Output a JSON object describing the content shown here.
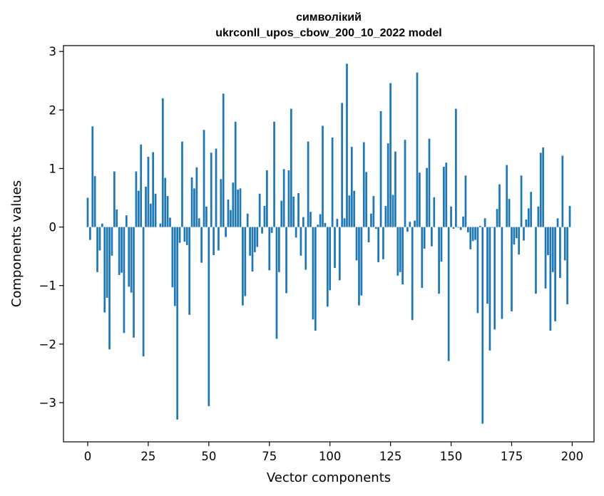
{
  "chart_data": {
    "type": "bar",
    "title": "символікий",
    "subtitle": "ukrconll_upos_cbow_200_10_2022 model",
    "xlabel": "Vector components",
    "ylabel": "Components values",
    "xlim": [
      -10,
      209
    ],
    "ylim": [
      -3.67,
      3.1
    ],
    "xticks": [
      0,
      25,
      50,
      75,
      100,
      125,
      150,
      175,
      200
    ],
    "yticks": [
      -3,
      -2,
      -1,
      0,
      1,
      2,
      3
    ],
    "bar_color": "#1f77b4",
    "grid": false,
    "legend": "none",
    "x": [
      0,
      1,
      2,
      3,
      4,
      5,
      6,
      7,
      8,
      9,
      10,
      11,
      12,
      13,
      14,
      15,
      16,
      17,
      18,
      19,
      20,
      21,
      22,
      23,
      24,
      25,
      26,
      27,
      28,
      29,
      30,
      31,
      32,
      33,
      34,
      35,
      36,
      37,
      38,
      39,
      40,
      41,
      42,
      43,
      44,
      45,
      46,
      47,
      48,
      49,
      50,
      51,
      52,
      53,
      54,
      55,
      56,
      57,
      58,
      59,
      60,
      61,
      62,
      63,
      64,
      65,
      66,
      67,
      68,
      69,
      70,
      71,
      72,
      73,
      74,
      75,
      76,
      77,
      78,
      79,
      80,
      81,
      82,
      83,
      84,
      85,
      86,
      87,
      88,
      89,
      90,
      91,
      92,
      93,
      94,
      95,
      96,
      97,
      98,
      99,
      100,
      101,
      102,
      103,
      104,
      105,
      106,
      107,
      108,
      109,
      110,
      111,
      112,
      113,
      114,
      115,
      116,
      117,
      118,
      119,
      120,
      121,
      122,
      123,
      124,
      125,
      126,
      127,
      128,
      129,
      130,
      131,
      132,
      133,
      134,
      135,
      136,
      137,
      138,
      139,
      140,
      141,
      142,
      143,
      144,
      145,
      146,
      147,
      148,
      149,
      150,
      151,
      152,
      153,
      154,
      155,
      156,
      157,
      158,
      159,
      160,
      161,
      162,
      163,
      164,
      165,
      166,
      167,
      168,
      169,
      170,
      171,
      172,
      173,
      174,
      175,
      176,
      177,
      178,
      179,
      180,
      181,
      182,
      183,
      184,
      185,
      186,
      187,
      188,
      189,
      190,
      191,
      192,
      193,
      194,
      195,
      196,
      197,
      198,
      199
    ],
    "values": [
      0.5,
      -0.22,
      1.72,
      0.87,
      -0.77,
      -0.4,
      0.06,
      -1.46,
      -1.21,
      -2.09,
      -0.49,
      0.95,
      0.3,
      -0.82,
      -0.78,
      -1.81,
      0.2,
      -1.02,
      -1.12,
      -1.89,
      0.95,
      0.62,
      1.41,
      -2.21,
      0.69,
      1.2,
      0.4,
      1.28,
      0.57,
      0.0,
      0.06,
      2.2,
      0.84,
      0.53,
      0.16,
      -1.03,
      -1.35,
      -3.29,
      -0.27,
      1.46,
      -0.25,
      -0.31,
      -1.5,
      0.85,
      0.66,
      1.02,
      0.15,
      -0.61,
      1.66,
      0.35,
      -3.06,
      1.27,
      -0.48,
      1.34,
      -0.4,
      0.82,
      2.28,
      -0.17,
      0.47,
      0.29,
      0.76,
      1.8,
      0.64,
      0.66,
      -1.34,
      -1.18,
      0.23,
      -0.49,
      -0.76,
      -0.43,
      -0.34,
      0.57,
      -0.11,
      0.36,
      0.97,
      -0.74,
      -0.1,
      1.8,
      -1.91,
      -0.77,
      0.45,
      0.99,
      -1.13,
      0.97,
      2.02,
      0.52,
      -0.18,
      0.58,
      -0.49,
      0.17,
      -0.73,
      1.46,
      0.26,
      -1.58,
      -1.77,
      0.04,
      0.22,
      1.73,
      0.07,
      -1.36,
      -1.08,
      1.53,
      -0.7,
      0.14,
      -0.91,
      2.12,
      0.15,
      2.79,
      0.54,
      1.37,
      0.62,
      -0.57,
      -1.34,
      -1.17,
      1.45,
      0.94,
      -0.26,
      0.23,
      0.53,
      -0.03,
      -0.6,
      1.98,
      -0.55,
      0.36,
      1.43,
      2.46,
      0.55,
      1.29,
      -0.83,
      -0.77,
      -0.98,
      1.49,
      -0.08,
      0.09,
      -1.59,
      0.11,
      2.64,
      0.93,
      -1.04,
      -0.37,
      1.01,
      1.51,
      -0.33,
      0.51,
      0.0,
      -1.14,
      -0.59,
      1.03,
      1.1,
      -2.29,
      0.35,
      -0.03,
      2.02,
      -0.01,
      -0.05,
      0.18,
      0.88,
      -0.09,
      -0.38,
      -0.24,
      -0.22,
      -1.47,
      0.02,
      -3.36,
      0.15,
      -1.31,
      -2.11,
      -0.01,
      -1.75,
      0.31,
      0.73,
      -1.57,
      0.0,
      1.06,
      0.48,
      -1.44,
      -0.3,
      -0.19,
      -0.47,
      0.88,
      -0.23,
      0.13,
      0.32,
      0.6,
      0.0,
      -1.14,
      0.35,
      1.27,
      1.36,
      -1.05,
      -0.48,
      -1.77,
      -0.77,
      -1.61,
      0.15,
      -0.87,
      1.22,
      -0.57,
      -1.32,
      0.36
    ]
  }
}
